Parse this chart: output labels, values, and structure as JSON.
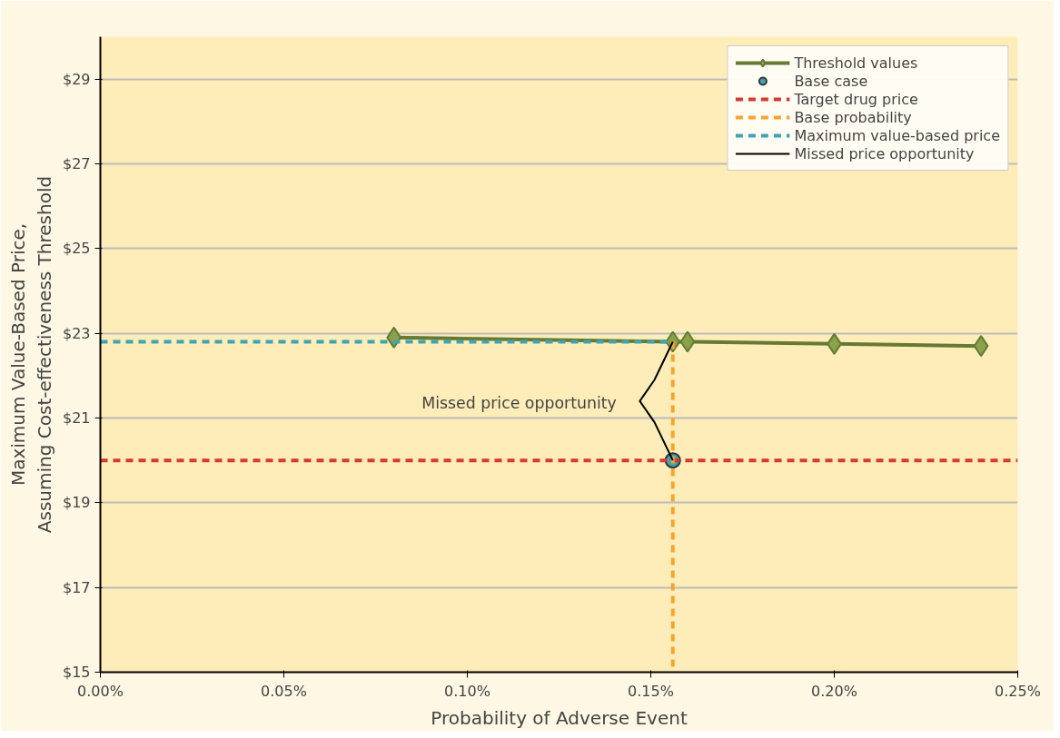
{
  "chart_data": {
    "type": "line",
    "xlabel": "Probability of Adverse Event",
    "ylabel": "Maximum Value-Based Price,\nAssuming Cost-effectiveness Threshold",
    "xlim": [
      0,
      0.25
    ],
    "ylim": [
      15,
      30
    ],
    "xticks": [
      {
        "value": 0,
        "label": "0.00%"
      },
      {
        "value": 0.05,
        "label": "0.05%"
      },
      {
        "value": 0.1,
        "label": "0.10%"
      },
      {
        "value": 0.15,
        "label": "0.15%"
      },
      {
        "value": 0.2,
        "label": "0.20%"
      },
      {
        "value": 0.25,
        "label": "0.25%"
      }
    ],
    "yticks": [
      {
        "value": 15,
        "label": "$15"
      },
      {
        "value": 17,
        "label": "$17"
      },
      {
        "value": 19,
        "label": "$19"
      },
      {
        "value": 21,
        "label": "$21"
      },
      {
        "value": 23,
        "label": "$23"
      },
      {
        "value": 25,
        "label": "$25"
      },
      {
        "value": 27,
        "label": "$27"
      },
      {
        "value": 29,
        "label": "$29"
      }
    ],
    "grid": "y",
    "legend": "top right",
    "series": [
      {
        "name": "Threshold values",
        "color": "#667a34",
        "marker": "diamond",
        "line_style": "solid",
        "x": [
          0.08,
          0.156,
          0.16,
          0.2,
          0.24
        ],
        "values": [
          22.9,
          22.8,
          22.8,
          22.75,
          22.7
        ]
      },
      {
        "name": "Base case",
        "type": "scatter",
        "color": "#3fa3b3",
        "marker": "circle",
        "x": [
          0.156
        ],
        "values": [
          20
        ]
      },
      {
        "name": "Target drug price",
        "color": "#d63a33",
        "marker": "none",
        "line_style": "dashed",
        "x": [
          0,
          0.25
        ],
        "values": [
          20,
          20
        ]
      },
      {
        "name": "Base probability",
        "color": "#f7a530",
        "marker": "none",
        "line_style": "dashed",
        "x": [
          0.156,
          0.156
        ],
        "values": [
          22.8,
          15
        ]
      },
      {
        "name": "Maximum value-based price",
        "color": "#3fa3b3",
        "marker": "none",
        "line_style": "dashed",
        "x": [
          0,
          0.156
        ],
        "values": [
          22.8,
          22.8
        ]
      },
      {
        "name": "Missed price opportunity",
        "color": "#000000",
        "marker": "none",
        "line_style": "solid",
        "x": [
          0.156,
          0.151,
          0.147,
          0.151,
          0.156
        ],
        "values": [
          22.8,
          21.9,
          21.4,
          20.9,
          20
        ]
      }
    ],
    "annotations": [
      "Missed price opportunity"
    ]
  }
}
